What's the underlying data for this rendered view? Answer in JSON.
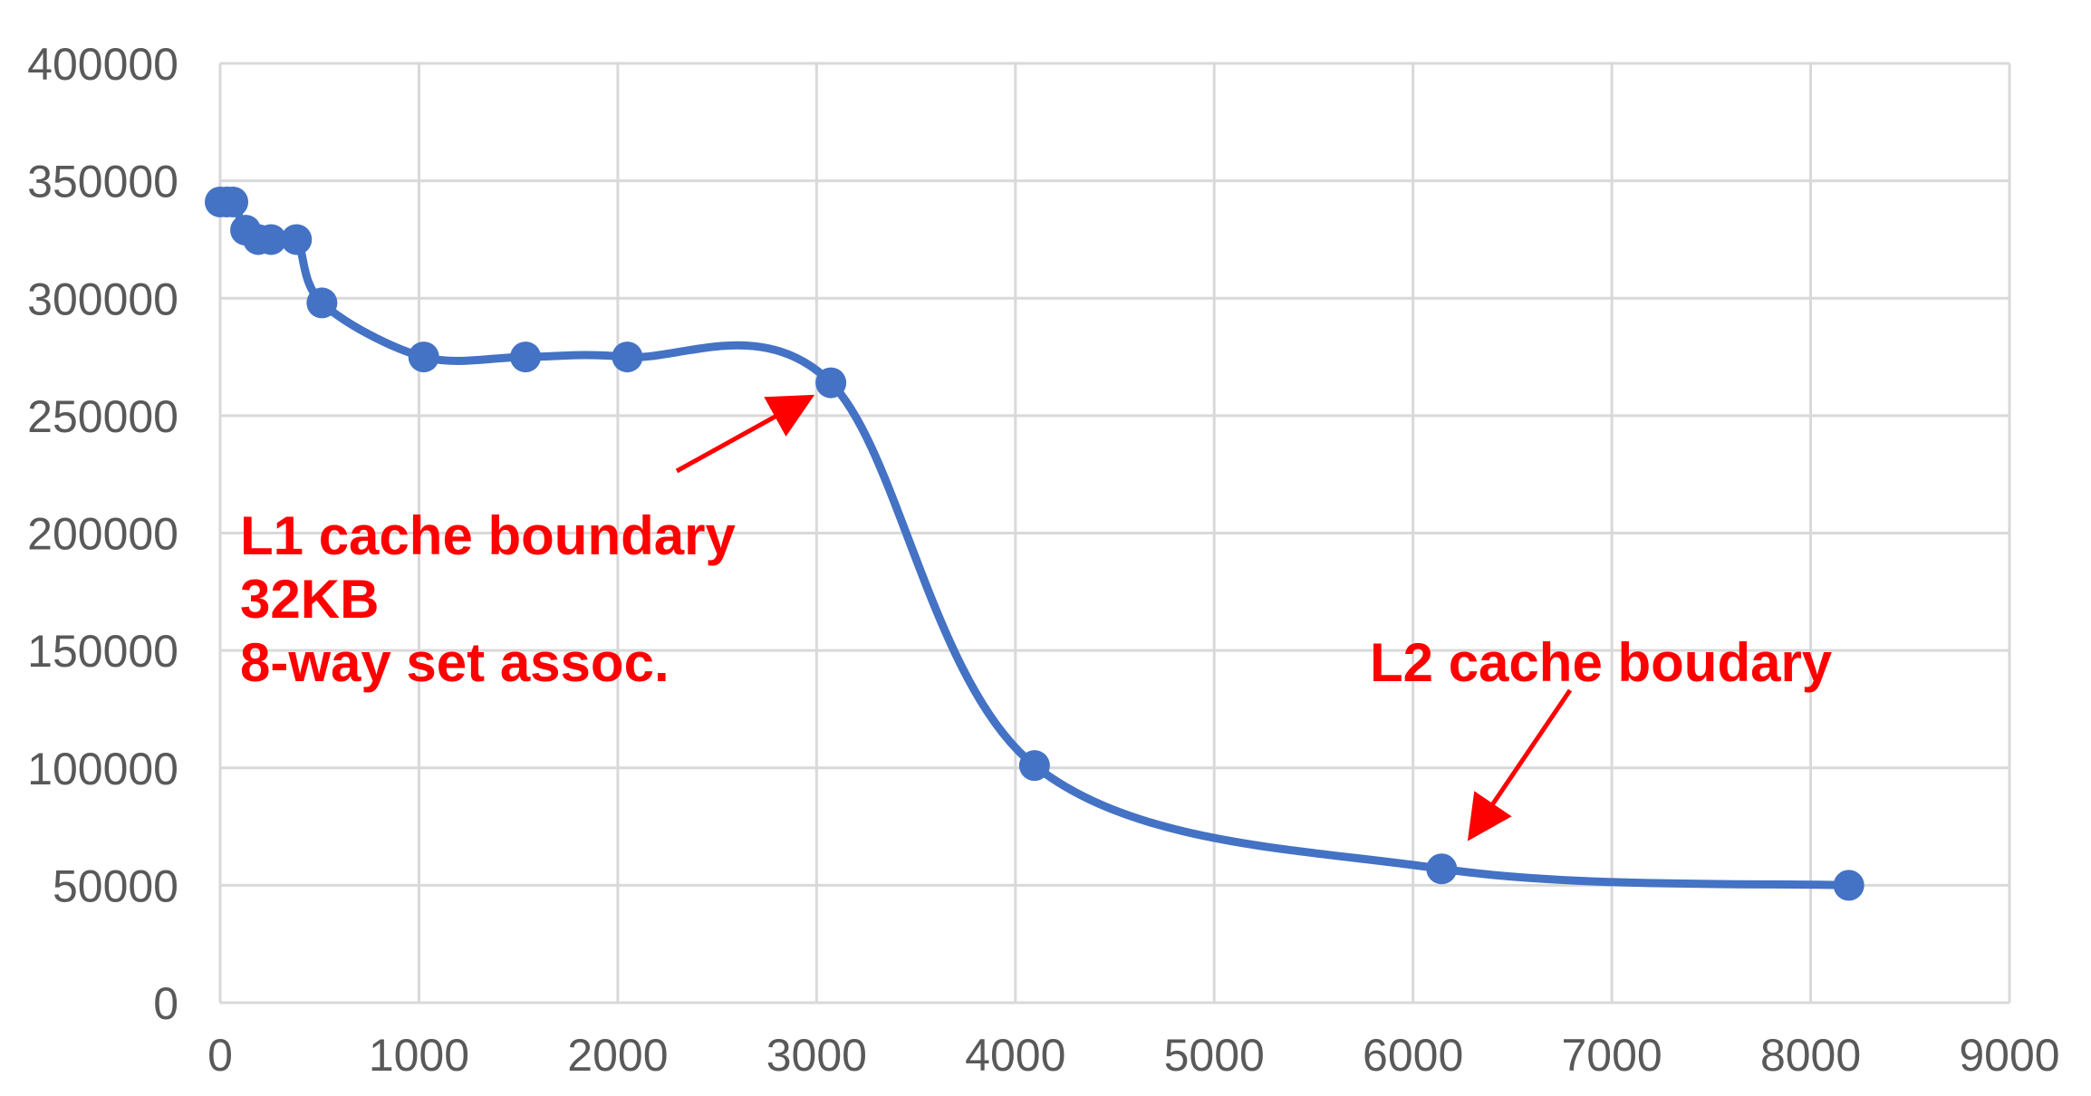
{
  "chart_data": {
    "type": "scatter",
    "title": "",
    "xlabel": "",
    "ylabel": "",
    "xlim": [
      0,
      9000
    ],
    "ylim": [
      0,
      400000
    ],
    "x_ticks": [
      0,
      1000,
      2000,
      3000,
      4000,
      5000,
      6000,
      7000,
      8000,
      9000
    ],
    "y_ticks": [
      0,
      50000,
      100000,
      150000,
      200000,
      250000,
      300000,
      350000,
      400000
    ],
    "x_tick_labels": [
      "0",
      "1000",
      "2000",
      "3000",
      "4000",
      "5000",
      "6000",
      "7000",
      "8000",
      "9000"
    ],
    "y_tick_labels": [
      "0",
      "50000",
      "100000",
      "150000",
      "200000",
      "250000",
      "300000",
      "350000",
      "400000"
    ],
    "grid": true,
    "smooth_line": true,
    "series": [
      {
        "color": "#4472C4",
        "points": [
          {
            "x": 0,
            "y": 341000
          },
          {
            "x": 32,
            "y": 341000
          },
          {
            "x": 64,
            "y": 341000
          },
          {
            "x": 128,
            "y": 329000
          },
          {
            "x": 192,
            "y": 325000
          },
          {
            "x": 256,
            "y": 325000
          },
          {
            "x": 384,
            "y": 325000
          },
          {
            "x": 512,
            "y": 298000
          },
          {
            "x": 1024,
            "y": 275000
          },
          {
            "x": 1536,
            "y": 275000
          },
          {
            "x": 2048,
            "y": 275000
          },
          {
            "x": 3072,
            "y": 264000
          },
          {
            "x": 4096,
            "y": 101000
          },
          {
            "x": 6144,
            "y": 57000
          },
          {
            "x": 8192,
            "y": 50000
          }
        ]
      }
    ],
    "annotations": [
      {
        "lines": [
          "L1 cache boundary",
          "32KB",
          "8-way set assoc."
        ],
        "color": "#FF0000",
        "arrow_target": {
          "x": 2950,
          "y": 257000
        }
      },
      {
        "lines": [
          "L2 cache boudary"
        ],
        "color": "#FF0000",
        "arrow_target": {
          "x": 6300,
          "y": 72000
        }
      }
    ]
  }
}
